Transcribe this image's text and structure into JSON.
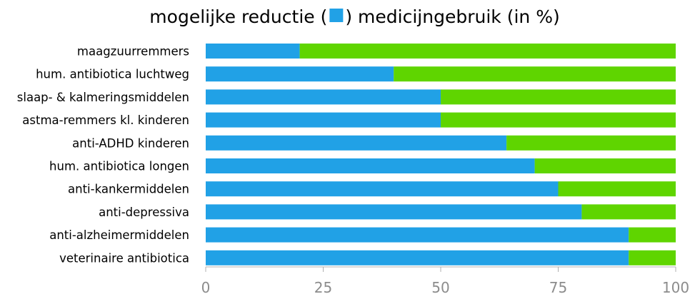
{
  "chart_data": {
    "type": "bar",
    "orientation": "horizontal",
    "stacked": true,
    "title": {
      "before": "mogelijke reductie (",
      "after": ") medicijngebruik (in %)"
    },
    "categories": [
      "maagzuurremmers",
      "hum. antibiotica luchtweg",
      "slaap- & kalmeringsmiddelen",
      "astma-remmers kl. kinderen",
      "anti-ADHD kinderen",
      "hum. antibiotica longen",
      "anti-kankermiddelen",
      "anti-depressiva",
      "anti-alzheimermiddelen",
      "veterinaire antibiotica"
    ],
    "series": [
      {
        "values": [
          20,
          40,
          50,
          50,
          64,
          70,
          75,
          80,
          90,
          90
        ],
        "color": "#21a1e6"
      },
      {
        "values": [
          80,
          60,
          50,
          50,
          36,
          30,
          25,
          20,
          10,
          10
        ],
        "color": "#5fd500"
      }
    ],
    "xlim": [
      0,
      100
    ],
    "xticks": [
      0,
      25,
      50,
      75,
      100
    ],
    "legend": "inline-in-title",
    "grid": false
  }
}
